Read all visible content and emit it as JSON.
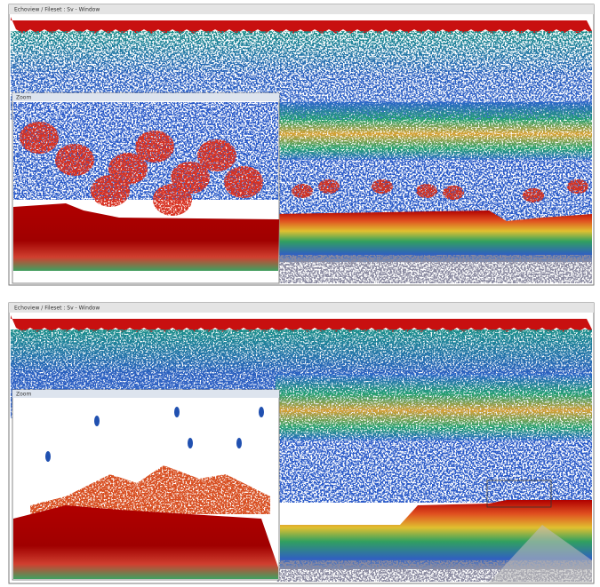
{
  "panels": [
    {
      "title": "Echoview / Fileset : Sv - Window",
      "inset_title": "Zoom"
    },
    {
      "title": "Echoview / Fileset : Sv - Window",
      "inset_title": "Zoom"
    }
  ]
}
